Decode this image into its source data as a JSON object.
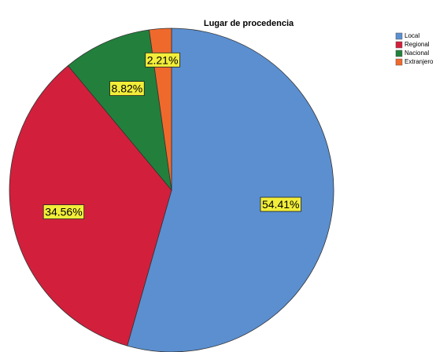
{
  "chart_data": {
    "type": "pie",
    "title": "Lugar de procedencia",
    "categories": [
      "Local",
      "Regional",
      "Nacional",
      "Extranjero"
    ],
    "values": [
      54.41,
      34.56,
      8.82,
      2.21
    ],
    "value_labels": [
      "54.41%",
      "34.56%",
      "8.82%",
      "2.21%"
    ],
    "colors": [
      "#5b8fd0",
      "#d2203c",
      "#22803c",
      "#f0692c"
    ],
    "legend": "right"
  }
}
